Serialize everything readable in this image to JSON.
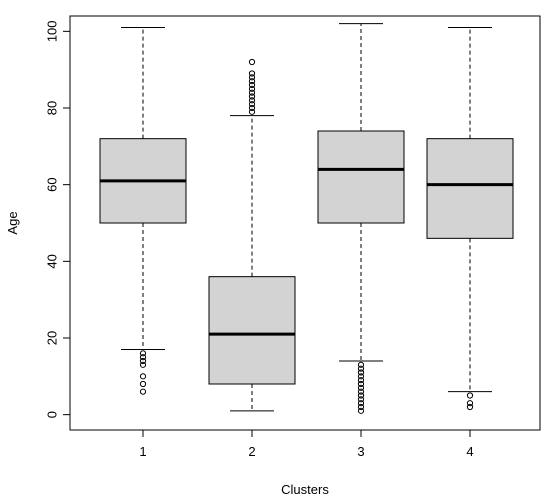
{
  "chart_data": {
    "type": "boxplot",
    "title": "",
    "xlabel": "Clusters",
    "ylabel": "Age",
    "ylim": [
      -4,
      104
    ],
    "yticks": [
      0,
      20,
      40,
      60,
      80,
      100
    ],
    "grid": false,
    "box_fill": "#d3d3d3",
    "categories": [
      "1",
      "2",
      "3",
      "4"
    ],
    "boxes": [
      {
        "whisker_low": 17,
        "q1": 50,
        "median": 61,
        "q3": 72,
        "whisker_high": 101,
        "outliers": [
          6,
          8,
          10,
          13,
          14,
          15,
          16
        ]
      },
      {
        "whisker_low": 1,
        "q1": 8,
        "median": 21,
        "q3": 36,
        "whisker_high": 78,
        "outliers": [
          79,
          80,
          81,
          82,
          83,
          84,
          85,
          86,
          87,
          88,
          89,
          92
        ]
      },
      {
        "whisker_low": 14,
        "q1": 50,
        "median": 64,
        "q3": 74,
        "whisker_high": 102,
        "outliers": [
          1,
          2,
          3,
          4,
          5,
          6,
          7,
          8,
          9,
          10,
          11,
          12,
          13
        ]
      },
      {
        "whisker_low": 6,
        "q1": 46,
        "median": 60,
        "q3": 72,
        "whisker_high": 101,
        "outliers": [
          2,
          3,
          5
        ]
      }
    ]
  }
}
